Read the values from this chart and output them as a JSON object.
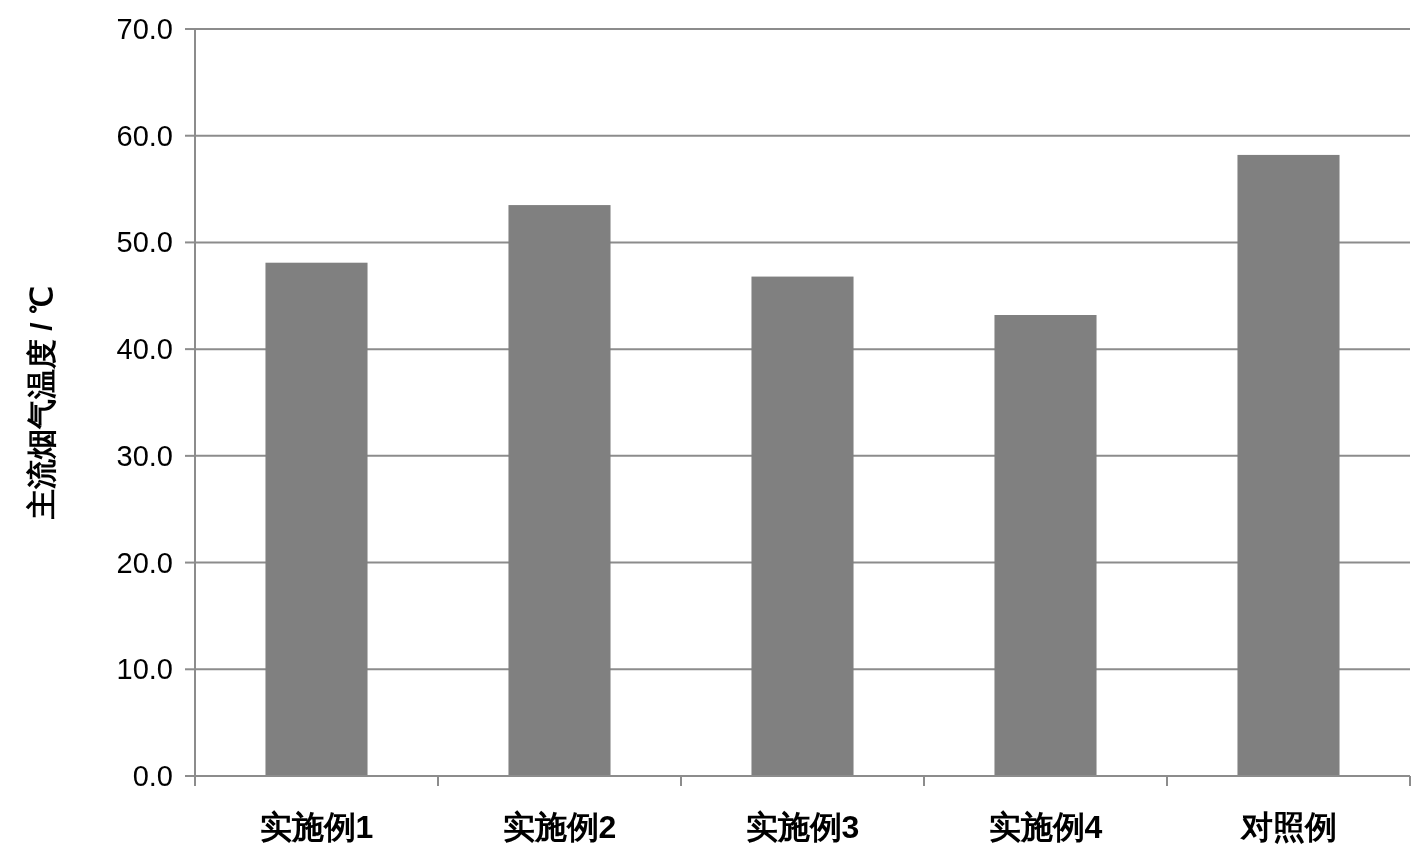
{
  "chart_data": {
    "type": "bar",
    "ylabel": "主流烟气温度 / ℃",
    "categories": [
      "实施例1",
      "实施例2",
      "实施例3",
      "实施例4",
      "对照例"
    ],
    "values": [
      48.1,
      53.5,
      46.8,
      43.2,
      58.2
    ],
    "color": "#808080",
    "ylim": [
      0,
      70
    ],
    "yticks": [
      {
        "value": 0,
        "label": "0.0"
      },
      {
        "value": 10,
        "label": "10.0"
      },
      {
        "value": 20,
        "label": "20.0"
      },
      {
        "value": 30,
        "label": "30.0"
      },
      {
        "value": 40,
        "label": "40.0"
      },
      {
        "value": 50,
        "label": "50.0"
      },
      {
        "value": 60,
        "label": "60.0"
      },
      {
        "value": 70,
        "label": "70.0"
      }
    ],
    "grid": "y"
  }
}
